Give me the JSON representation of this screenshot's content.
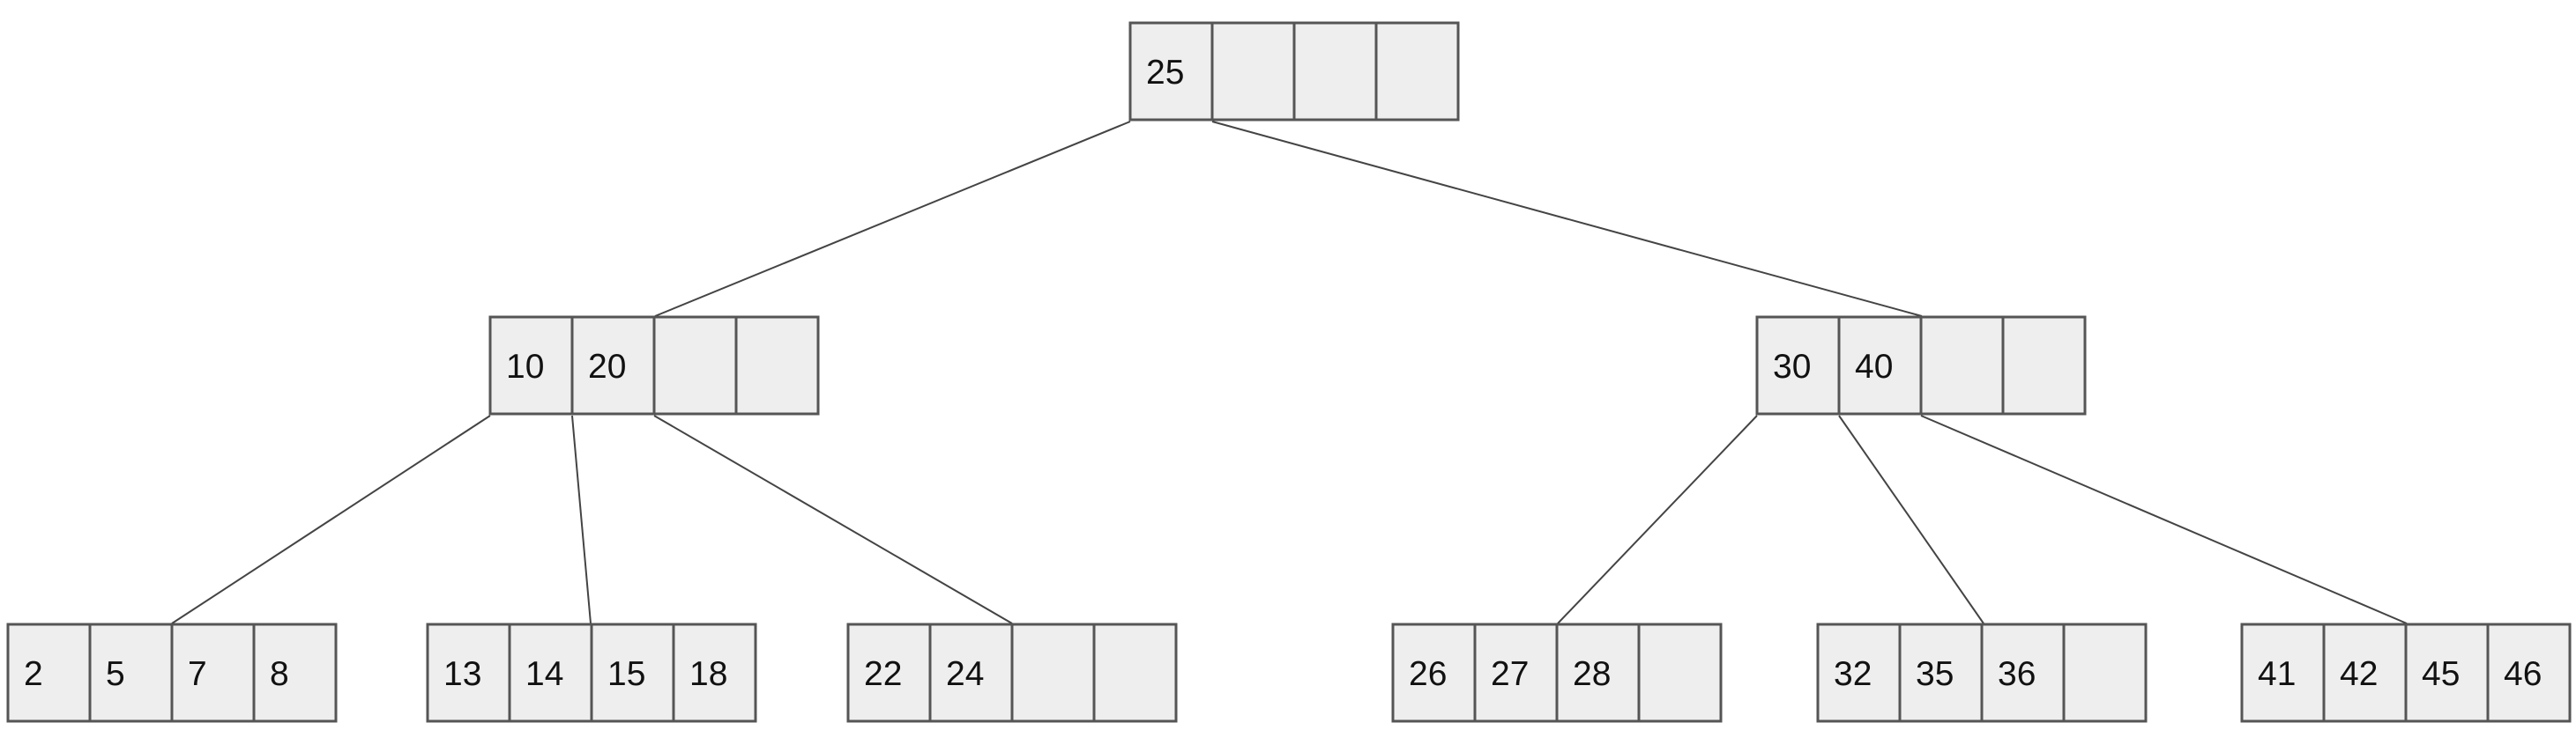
{
  "diagram": {
    "type": "b-tree",
    "slots_per_node": 4,
    "levels": [
      {
        "nodes": [
          {
            "id": "root",
            "keys": [
              "25",
              "",
              "",
              ""
            ]
          }
        ]
      },
      {
        "nodes": [
          {
            "id": "internal-left",
            "keys": [
              "10",
              "20",
              "",
              ""
            ]
          },
          {
            "id": "internal-right",
            "keys": [
              "30",
              "40",
              "",
              ""
            ]
          }
        ]
      },
      {
        "nodes": [
          {
            "id": "leaf-1",
            "keys": [
              "2",
              "5",
              "7",
              "8"
            ]
          },
          {
            "id": "leaf-2",
            "keys": [
              "13",
              "14",
              "15",
              "18"
            ]
          },
          {
            "id": "leaf-3",
            "keys": [
              "22",
              "24",
              "",
              ""
            ]
          },
          {
            "id": "leaf-4",
            "keys": [
              "26",
              "27",
              "28",
              ""
            ]
          },
          {
            "id": "leaf-5",
            "keys": [
              "32",
              "35",
              "36",
              ""
            ]
          },
          {
            "id": "leaf-6",
            "keys": [
              "41",
              "42",
              "45",
              "46"
            ]
          }
        ]
      }
    ],
    "edges": [
      {
        "from": "root",
        "pointer": 0,
        "to": "internal-left"
      },
      {
        "from": "root",
        "pointer": 1,
        "to": "internal-right"
      },
      {
        "from": "internal-left",
        "pointer": 0,
        "to": "leaf-1"
      },
      {
        "from": "internal-left",
        "pointer": 1,
        "to": "leaf-2"
      },
      {
        "from": "internal-left",
        "pointer": 2,
        "to": "leaf-3"
      },
      {
        "from": "internal-right",
        "pointer": 0,
        "to": "leaf-4"
      },
      {
        "from": "internal-right",
        "pointer": 1,
        "to": "leaf-5"
      },
      {
        "from": "internal-right",
        "pointer": 2,
        "to": "leaf-6"
      }
    ]
  }
}
